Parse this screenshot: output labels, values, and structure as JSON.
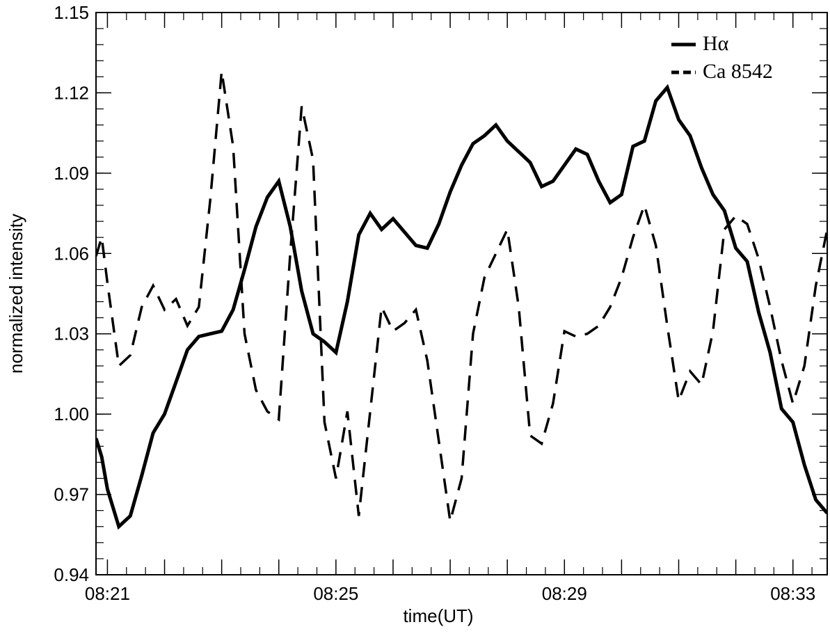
{
  "chart_data": {
    "type": "line",
    "xlabel": "time(UT)",
    "ylabel": "normalized intensity",
    "x_unit": "minutes",
    "xlim": [
      "08:20.8",
      "08:33.6"
    ],
    "ylim": [
      0.94,
      1.15
    ],
    "x_tick_labels": [
      "08:21",
      "08:25",
      "08:29",
      "08:33"
    ],
    "y_ticks": [
      0.94,
      0.97,
      1.0,
      1.03,
      1.06,
      1.09,
      1.12,
      1.15
    ],
    "y_tick_labels": [
      "0.94",
      "0.97",
      "1.00",
      "1.03",
      "1.06",
      "1.09",
      "1.12",
      "1.15"
    ],
    "legend_position": "top-right",
    "series": [
      {
        "name": "Hα",
        "style": "solid",
        "color": "#000000",
        "x": [
          "08:20.8",
          "08:20.9",
          "08:21.0",
          "08:21.2",
          "08:21.4",
          "08:21.6",
          "08:21.8",
          "08:22.0",
          "08:22.2",
          "08:22.4",
          "08:22.6",
          "08:22.8",
          "08:23.0",
          "08:23.2",
          "08:23.4",
          "08:23.6",
          "08:23.8",
          "08:24.0",
          "08:24.2",
          "08:24.4",
          "08:24.6",
          "08:24.8",
          "08:25.0",
          "08:25.2",
          "08:25.4",
          "08:25.6",
          "08:25.8",
          "08:26.0",
          "08:26.2",
          "08:26.4",
          "08:26.6",
          "08:26.8",
          "08:27.0",
          "08:27.2",
          "08:27.4",
          "08:27.6",
          "08:27.8",
          "08:28.0",
          "08:28.2",
          "08:28.4",
          "08:28.6",
          "08:28.8",
          "08:29.0",
          "08:29.2",
          "08:29.4",
          "08:29.6",
          "08:29.8",
          "08:30.0",
          "08:30.2",
          "08:30.4",
          "08:30.6",
          "08:30.8",
          "08:31.0",
          "08:31.2",
          "08:31.4",
          "08:31.6",
          "08:31.8",
          "08:32.0",
          "08:32.2",
          "08:32.4",
          "08:32.6",
          "08:32.8",
          "08:33.0",
          "08:33.2",
          "08:33.4",
          "08:33.6"
        ],
        "y": [
          0.991,
          0.984,
          0.972,
          0.958,
          0.962,
          0.977,
          0.993,
          1.0,
          1.012,
          1.024,
          1.029,
          1.03,
          1.031,
          1.039,
          1.054,
          1.07,
          1.081,
          1.087,
          1.07,
          1.046,
          1.03,
          1.027,
          1.023,
          1.042,
          1.067,
          1.075,
          1.069,
          1.073,
          1.068,
          1.063,
          1.062,
          1.071,
          1.083,
          1.093,
          1.101,
          1.104,
          1.108,
          1.102,
          1.098,
          1.094,
          1.085,
          1.087,
          1.093,
          1.099,
          1.097,
          1.087,
          1.079,
          1.082,
          1.1,
          1.102,
          1.117,
          1.122,
          1.11,
          1.104,
          1.092,
          1.082,
          1.076,
          1.062,
          1.057,
          1.038,
          1.023,
          1.002,
          0.997,
          0.981,
          0.968,
          0.963
        ]
      },
      {
        "name": "Ca 8542",
        "style": "dashed",
        "color": "#000000",
        "x": [
          "08:20.8",
          "08:20.9",
          "08:21.0",
          "08:21.2",
          "08:21.4",
          "08:21.6",
          "08:21.8",
          "08:22.0",
          "08:22.2",
          "08:22.4",
          "08:22.6",
          "08:22.8",
          "08:23.0",
          "08:23.2",
          "08:23.4",
          "08:23.6",
          "08:23.8",
          "08:24.0",
          "08:24.2",
          "08:24.4",
          "08:24.6",
          "08:24.8",
          "08:25.0",
          "08:25.2",
          "08:25.4",
          "08:25.6",
          "08:25.8",
          "08:26.0",
          "08:26.2",
          "08:26.4",
          "08:26.6",
          "08:26.8",
          "08:27.0",
          "08:27.2",
          "08:27.4",
          "08:27.6",
          "08:27.8",
          "08:28.0",
          "08:28.2",
          "08:28.4",
          "08:28.6",
          "08:28.8",
          "08:29.0",
          "08:29.2",
          "08:29.4",
          "08:29.6",
          "08:29.8",
          "08:30.0",
          "08:30.2",
          "08:30.4",
          "08:30.6",
          "08:30.8",
          "08:31.0",
          "08:31.2",
          "08:31.4",
          "08:31.6",
          "08:31.8",
          "08:32.0",
          "08:32.2",
          "08:32.4",
          "08:32.6",
          "08:32.8",
          "08:33.0",
          "08:33.2",
          "08:33.4",
          "08:33.6"
        ],
        "y": [
          1.059,
          1.066,
          1.049,
          1.018,
          1.022,
          1.04,
          1.048,
          1.039,
          1.043,
          1.033,
          1.04,
          1.08,
          1.128,
          1.1,
          1.03,
          1.009,
          1.001,
          0.998,
          1.06,
          1.115,
          1.095,
          0.997,
          0.976,
          1.001,
          0.962,
          1.001,
          1.04,
          1.031,
          1.034,
          1.039,
          1.02,
          0.99,
          0.96,
          0.976,
          1.03,
          1.051,
          1.06,
          1.069,
          1.04,
          0.992,
          0.989,
          1.004,
          1.031,
          1.029,
          1.03,
          1.033,
          1.04,
          1.051,
          1.066,
          1.078,
          1.063,
          1.033,
          1.005,
          1.016,
          1.011,
          1.031,
          1.069,
          1.074,
          1.071,
          1.058,
          1.04,
          1.02,
          1.004,
          1.018,
          1.048,
          1.069
        ]
      }
    ]
  }
}
